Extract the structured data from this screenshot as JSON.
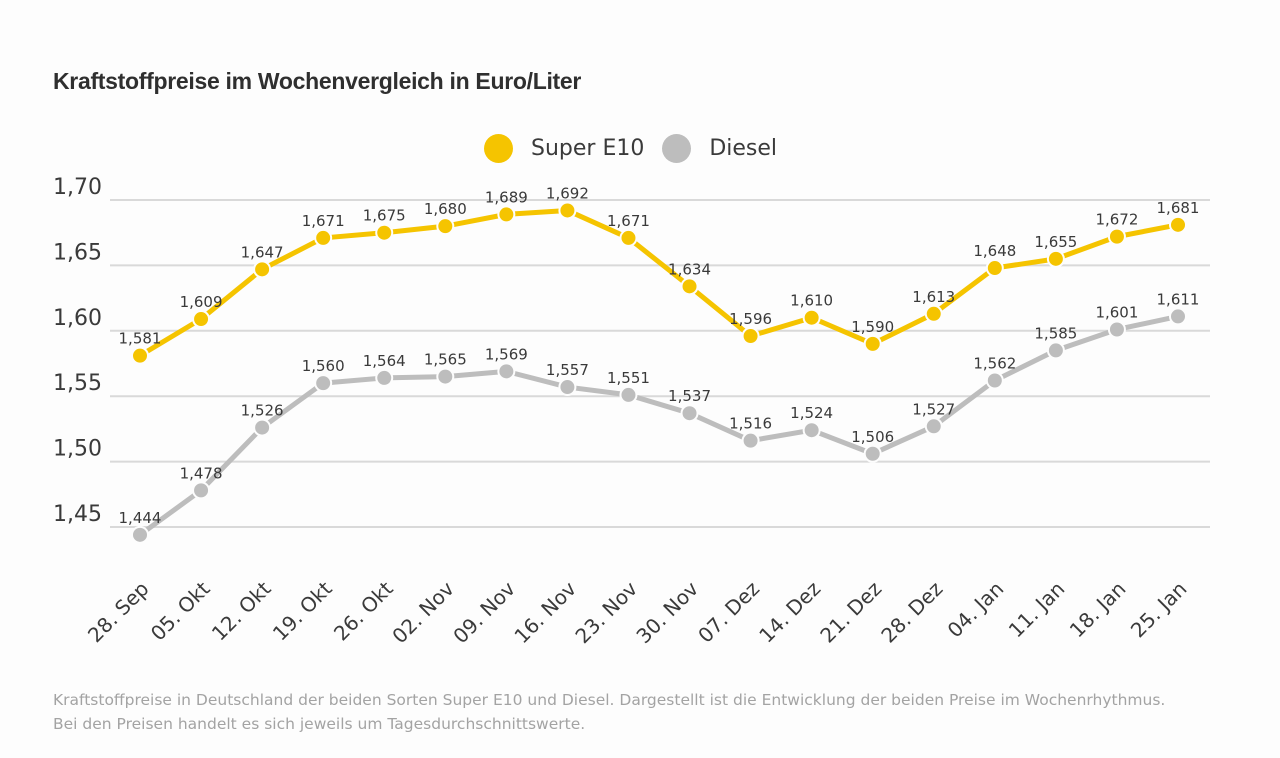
{
  "chart_data": {
    "type": "line",
    "title": "Kraftstoffpreise im Wochenvergleich in Euro/Liter",
    "xlabel": "",
    "ylabel": "",
    "ylim": [
      1.45,
      1.7
    ],
    "yticks": [
      1.7,
      1.65,
      1.6,
      1.55,
      1.5,
      1.45
    ],
    "ytick_labels": [
      "1,70",
      "1,65",
      "1,60",
      "1,55",
      "1,50",
      "1,45"
    ],
    "grid": true,
    "legend_position": "top-center",
    "categories": [
      "28. Sep",
      "05. Okt",
      "12. Okt",
      "19. Okt",
      "26. Okt",
      "02. Nov",
      "09. Nov",
      "16. Nov",
      "23. Nov",
      "30. Nov",
      "07. Dez",
      "14. Dez",
      "21. Dez",
      "28. Dez",
      "04. Jan",
      "11. Jan",
      "18. Jan",
      "25. Jan"
    ],
    "series": [
      {
        "name": "Super E10",
        "color": "#f5c400",
        "values": [
          1.581,
          1.609,
          1.647,
          1.671,
          1.675,
          1.68,
          1.689,
          1.692,
          1.671,
          1.634,
          1.596,
          1.61,
          1.59,
          1.613,
          1.648,
          1.655,
          1.672,
          1.681
        ],
        "labels": [
          "1,581",
          "1,609",
          "1,647",
          "1,671",
          "1,675",
          "1,680",
          "1,689",
          "1,692",
          "1,671",
          "1,634",
          "1,596",
          "1,610",
          "1,590",
          "1,613",
          "1,648",
          "1,655",
          "1,672",
          "1,681"
        ]
      },
      {
        "name": "Diesel",
        "color": "#bdbdbd",
        "values": [
          1.444,
          1.478,
          1.526,
          1.56,
          1.564,
          1.565,
          1.569,
          1.557,
          1.551,
          1.537,
          1.516,
          1.524,
          1.506,
          1.527,
          1.562,
          1.585,
          1.601,
          1.611
        ],
        "labels": [
          "1,444",
          "1,478",
          "1,526",
          "1,560",
          "1,564",
          "1,565",
          "1,569",
          "1,557",
          "1,551",
          "1,537",
          "1,516",
          "1,524",
          "1,506",
          "1,527",
          "1,562",
          "1,585",
          "1,601",
          "1,611"
        ]
      }
    ]
  },
  "footer": "Kraftstoffpreise in Deutschland der beiden Sorten Super E10 und Diesel. Dargestellt ist die Entwicklung der beiden Preise im Wochenrhythmus. Bei den Preisen handelt es sich jeweils um Tagesdurchschnittswerte."
}
